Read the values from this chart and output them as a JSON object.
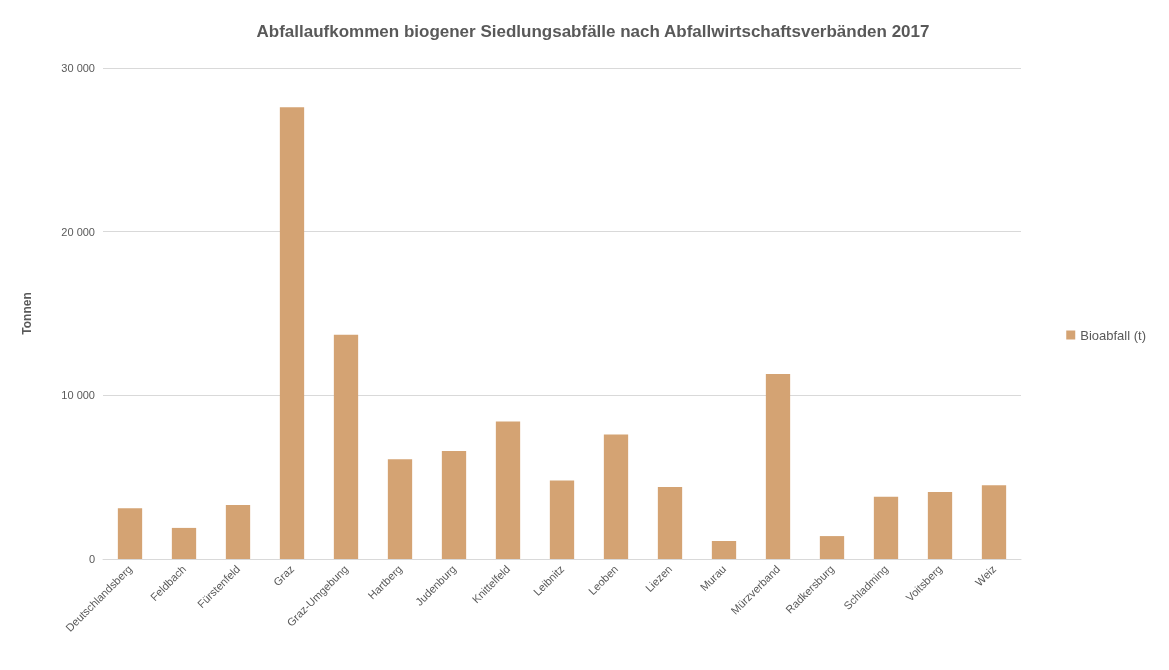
{
  "chart_data": {
    "type": "bar",
    "title": "Abfallaufkommen biogener Siedlungsabfälle nach Abfallwirtschaftsverbänden 2017",
    "ylabel": "Tonnen",
    "categories": [
      "Deutschlandsberg",
      "Feldbach",
      "Fürstenfeld",
      "Graz",
      "Graz-Umgebung",
      "Hartberg",
      "Judenburg",
      "Knittelfeld",
      "Leibnitz",
      "Leoben",
      "Liezen",
      "Murau",
      "Mürzverband",
      "Radkersburg",
      "Schladming",
      "Voitsberg",
      "Weiz"
    ],
    "series": [
      {
        "name": "Bioabfall (t)",
        "color": "#d4a373",
        "values": [
          3100,
          1900,
          3300,
          27600,
          13700,
          6100,
          6600,
          8400,
          4800,
          7600,
          4400,
          1100,
          11300,
          1400,
          3800,
          4100,
          4500
        ]
      }
    ],
    "ylim": [
      0,
      30000
    ],
    "yticks": [
      0,
      {
        "value": 10000,
        "label": "10 000"
      },
      {
        "value": 20000,
        "label": "20 000"
      },
      {
        "value": 30000,
        "label": "30 000"
      }
    ],
    "grid": "y",
    "legend": "right"
  }
}
